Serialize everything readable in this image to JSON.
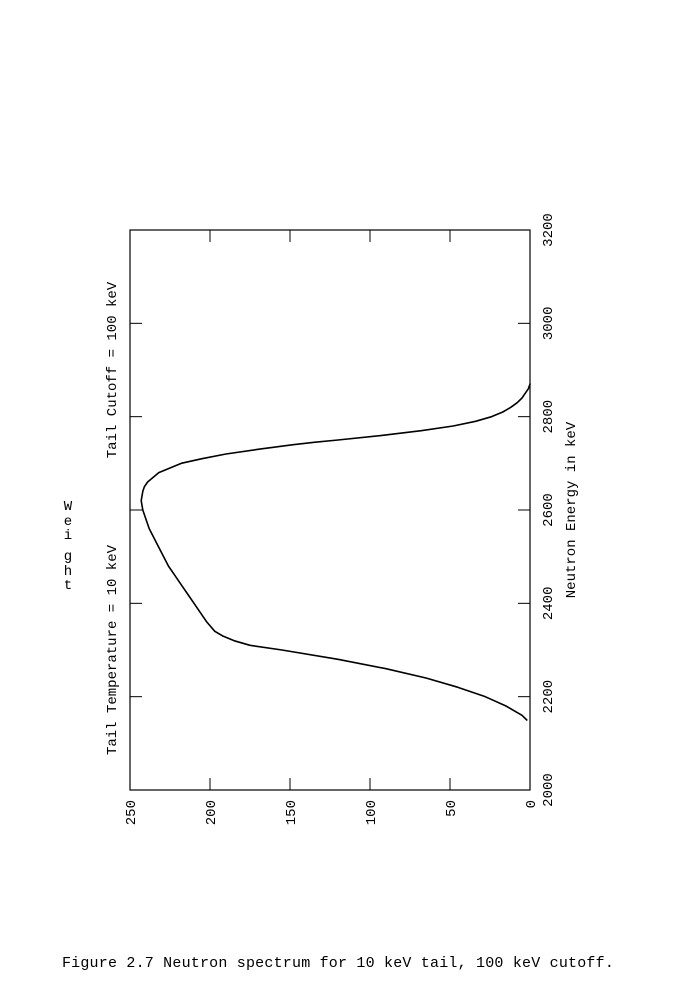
{
  "chart": {
    "type": "line",
    "title_top_left": "Tail Temperature = 10 keV",
    "title_top_right": "Tail Cutoff = 100 keV",
    "xlabel": "Neutron Energy in keV",
    "ylabel": "Weight",
    "xlim": [
      2000,
      3200
    ],
    "ylim": [
      0,
      250
    ],
    "xtick_step": 200,
    "ytick_step": 50,
    "xticks": [
      2000,
      2200,
      2400,
      2600,
      2800,
      3000,
      3200
    ],
    "yticks": [
      0,
      50,
      100,
      150,
      200,
      250
    ],
    "background_color": "#ffffff",
    "axis_color": "#000000",
    "line_color": "#000000",
    "line_width": 1.6,
    "tick_length_major": 12,
    "tick_font_size": 14,
    "label_font_size": 14,
    "title_font_size": 14,
    "series": {
      "x": [
        2150,
        2160,
        2180,
        2200,
        2220,
        2240,
        2260,
        2280,
        2300,
        2310,
        2320,
        2330,
        2340,
        2360,
        2380,
        2400,
        2420,
        2440,
        2460,
        2480,
        2500,
        2520,
        2540,
        2560,
        2580,
        2600,
        2610,
        2620,
        2640,
        2650,
        2660,
        2680,
        2700,
        2710,
        2720,
        2730,
        2740,
        2745,
        2750,
        2760,
        2770,
        2780,
        2790,
        2800,
        2810,
        2820,
        2830,
        2840,
        2850,
        2860,
        2870
      ],
      "y": [
        2,
        5,
        15,
        28,
        45,
        65,
        90,
        120,
        155,
        175,
        185,
        192,
        197,
        202,
        206,
        210,
        214,
        218,
        222,
        226,
        229,
        232,
        235,
        238,
        240,
        242,
        242.5,
        243,
        242,
        241,
        239,
        232,
        218,
        205,
        190,
        170,
        148,
        135,
        120,
        92,
        68,
        48,
        34,
        24,
        17,
        12,
        8,
        5,
        3,
        1,
        0
      ]
    }
  },
  "caption": "Figure 2.7   Neutron spectrum for 10 keV tail, 100 keV cutoff."
}
